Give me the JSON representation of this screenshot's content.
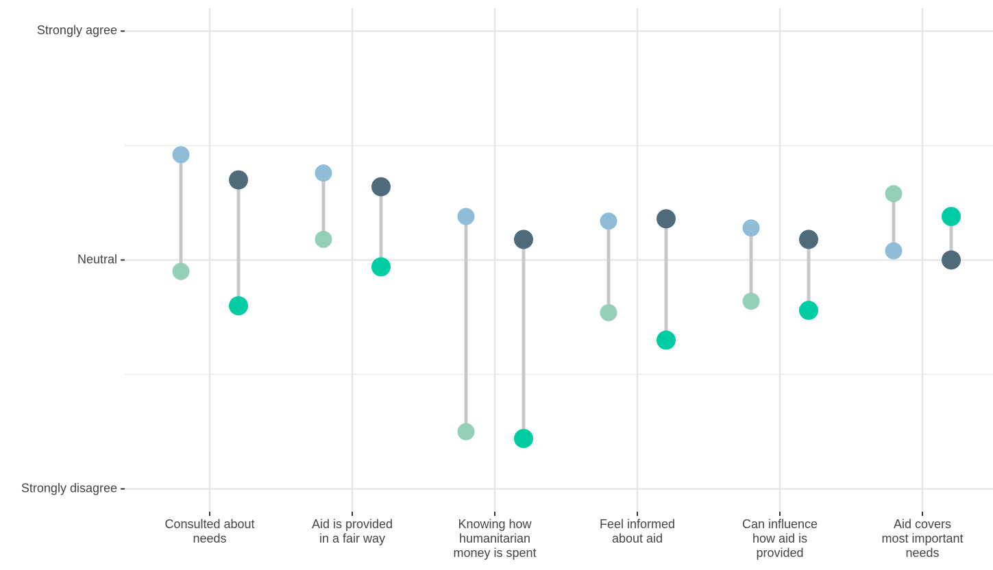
{
  "chart_data": {
    "type": "dumbbell",
    "categories": [
      "Consulted about\nneeds",
      "Aid is provided\nin a fair way",
      "Knowing how\nhumanitarian\nmoney is spent",
      "Feel informed\nabout aid",
      "Can influence\nhow aid is\nprovided",
      "Aid covers\nmost important\nneeds"
    ],
    "series": [
      {
        "color": "#8fbcd6",
        "values": [
          0.46,
          0.38,
          0.19,
          0.17,
          0.14,
          0.04
        ]
      },
      {
        "color": "#94cfb8",
        "values": [
          -0.05,
          0.09,
          -0.75,
          -0.23,
          -0.18,
          0.29
        ]
      },
      {
        "color": "#4f6b7b",
        "values": [
          0.35,
          0.32,
          0.09,
          0.18,
          0.09,
          0
        ]
      },
      {
        "color": "#00cca4",
        "values": [
          -0.2,
          -0.03,
          -0.78,
          -0.35,
          -0.22,
          0.19
        ]
      }
    ],
    "ylim": [
      -1.1,
      1.1
    ],
    "yticks": [
      {
        "value": -1,
        "label": "Strongly disagree"
      },
      {
        "value": 0,
        "label": "Neutral"
      },
      {
        "value": 1,
        "label": "Strongly agree"
      }
    ],
    "yminor": [
      -0.5,
      0.5
    ],
    "grid": true
  }
}
